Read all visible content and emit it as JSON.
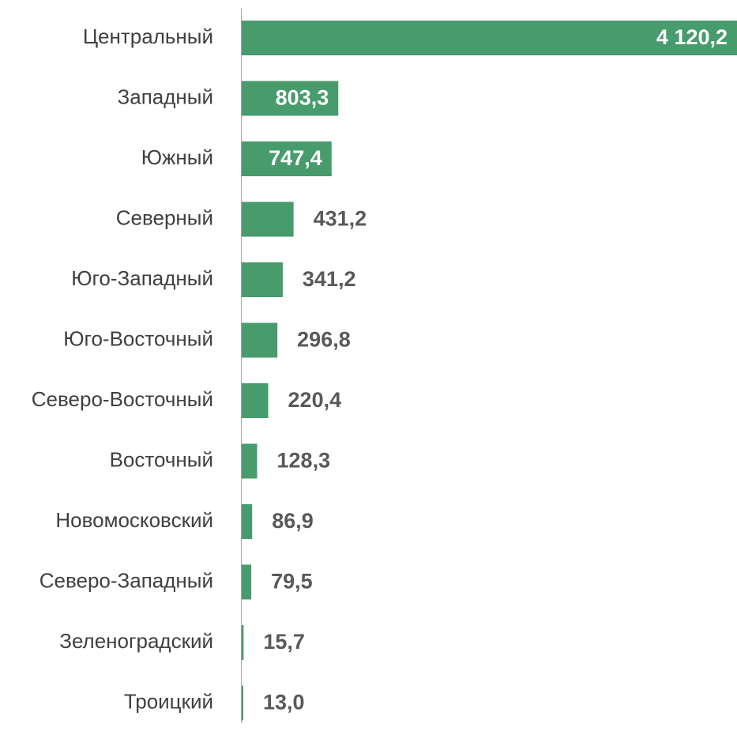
{
  "chart_data": {
    "type": "hbar",
    "categories": [
      "Центральный",
      "Западный",
      "Южный",
      "Северный",
      "Юго-Западный",
      "Юго-Восточный",
      "Северо-Восточный",
      "Восточный",
      "Новомосковский",
      "Северо-Западный",
      "Зеленоградский",
      "Троицкий"
    ],
    "values": [
      4120.2,
      803.3,
      747.4,
      431.2,
      341.2,
      296.8,
      220.4,
      128.3,
      86.9,
      79.5,
      15.7,
      13.0
    ],
    "value_labels": [
      "4 120,2",
      "803,3",
      "747,4",
      "431,2",
      "341,2",
      "296,8",
      "220,4",
      "128,3",
      "86,9",
      "79,5",
      "15,7",
      "13,0"
    ],
    "color": "#479b6c"
  }
}
